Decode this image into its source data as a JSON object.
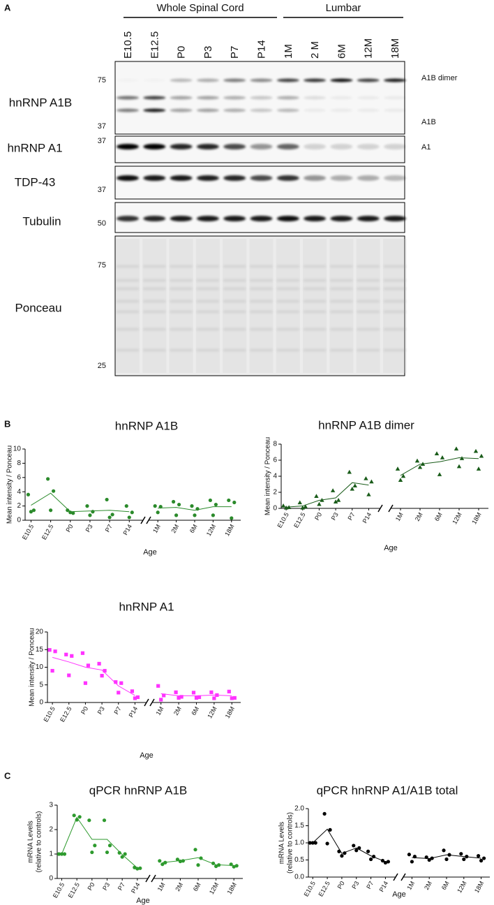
{
  "panels": [
    "A",
    "B",
    "C"
  ],
  "blot": {
    "groups": [
      "Whole Spinal Cord",
      "Lumbar"
    ],
    "lanes": [
      "E10.5",
      "E12.5",
      "P0",
      "P3",
      "P7",
      "P14",
      "1M",
      "2 M",
      "6M",
      "12M",
      "18M"
    ],
    "rows": [
      {
        "label": "hnRNP A1B",
        "markers": [
          "75",
          "37"
        ],
        "right_labels": [
          "A1B dimer",
          "A1B"
        ]
      },
      {
        "label": "hnRNP A1",
        "markers": [
          "37"
        ],
        "right_labels": [
          "A1"
        ]
      },
      {
        "label": "TDP-43",
        "markers": [
          "37"
        ],
        "right_labels": []
      },
      {
        "label": "Tubulin",
        "markers": [
          "50"
        ],
        "right_labels": []
      },
      {
        "label": "Ponceau",
        "markers": [
          "75",
          "25"
        ],
        "right_labels": []
      }
    ]
  },
  "chart_data": [
    {
      "type": "scatter",
      "title": "hnRNP A1B",
      "ylabel": "Mean intensity / Ponceau",
      "xlabel": "Age",
      "categories": [
        "E10.5",
        "E12.5",
        "P0",
        "P3",
        "P7",
        "P14",
        "1M",
        "2M",
        "6M",
        "12M",
        "18M"
      ],
      "replicates": [
        [
          3.6,
          1.4,
          1.2
        ],
        [
          5.8,
          4.1,
          1.4
        ],
        [
          1.4,
          1.0,
          1.1
        ],
        [
          2.0,
          1.2,
          0.7
        ],
        [
          2.9,
          0.8,
          0.4
        ],
        [
          2.0,
          1.1,
          0.4
        ],
        [
          2.0,
          1.9,
          1.1
        ],
        [
          2.6,
          2.2,
          0.7
        ],
        [
          2.0,
          1.6,
          0.7
        ],
        [
          2.8,
          2.2,
          0.7
        ],
        [
          2.8,
          2.5,
          0.3
        ]
      ],
      "values": [
        2.1,
        3.8,
        1.2,
        1.3,
        1.4,
        1.2,
        1.7,
        1.8,
        1.4,
        1.9,
        1.9
      ],
      "color": "#2b8a2b",
      "marker": "circle",
      "ylim": [
        0,
        10
      ],
      "yticks": [
        0,
        2,
        4,
        6,
        8,
        10
      ]
    },
    {
      "type": "scatter",
      "title": "hnRNP A1B dimer",
      "ylabel": "Mean intensity / Ponceau",
      "xlabel": "Age",
      "categories": [
        "E10.5",
        "E12.5",
        "P0",
        "P3",
        "P7",
        "P14",
        "1M",
        "2M",
        "6M",
        "12M",
        "18M"
      ],
      "replicates": [
        [
          0.3,
          0.1,
          0.05
        ],
        [
          0.7,
          0.2,
          0.05
        ],
        [
          1.5,
          1.0,
          0.5
        ],
        [
          2.2,
          1.0,
          0.8
        ],
        [
          4.5,
          2.8,
          2.4
        ],
        [
          3.7,
          3.3,
          1.7
        ],
        [
          4.9,
          4.0,
          3.5
        ],
        [
          5.9,
          5.5,
          5.1
        ],
        [
          6.8,
          6.3,
          4.2
        ],
        [
          7.4,
          6.2,
          5.2
        ],
        [
          7.1,
          6.5,
          4.9
        ]
      ],
      "values": [
        0.15,
        0.3,
        1.0,
        1.3,
        3.2,
        2.9,
        4.1,
        5.5,
        5.8,
        6.3,
        6.2
      ],
      "color": "#1a5c1a",
      "marker": "triangle",
      "ylim": [
        0,
        8
      ],
      "yticks": [
        0,
        2,
        4,
        6,
        8
      ]
    },
    {
      "type": "scatter",
      "title": "hnRNP A1",
      "ylabel": "Mean intensity / Ponceau",
      "xlabel": "Age",
      "categories": [
        "E10.5",
        "E12.5",
        "P0",
        "P3",
        "P7",
        "P14",
        "1M",
        "2M",
        "6M",
        "12M",
        "18M"
      ],
      "replicates": [
        [
          14.9,
          14.5,
          9.0
        ],
        [
          13.6,
          13.2,
          7.7
        ],
        [
          14.0,
          10.5,
          5.5
        ],
        [
          11.0,
          9.0,
          7.6
        ],
        [
          5.8,
          5.5,
          2.8
        ],
        [
          3.2,
          1.5,
          1.2
        ],
        [
          4.7,
          2.0,
          0.8
        ],
        [
          2.9,
          1.6,
          1.3
        ],
        [
          2.8,
          1.5,
          1.3
        ],
        [
          2.9,
          2.1,
          1.2
        ],
        [
          3.1,
          1.3,
          1.2
        ]
      ],
      "values": [
        12.8,
        11.5,
        10.0,
        9.2,
        4.7,
        2.0,
        2.5,
        1.9,
        1.9,
        2.1,
        1.9
      ],
      "color": "#ff33ff",
      "marker": "square",
      "ylim": [
        0,
        20
      ],
      "yticks": [
        0,
        5,
        10,
        15,
        20
      ]
    },
    {
      "type": "scatter",
      "title": "qPCR hnRNP A1B",
      "ylabel": [
        "mRNA Levels",
        "(relative to controls)"
      ],
      "xlabel": "Age",
      "categories": [
        "E10.5",
        "E12.5",
        "P0",
        "P3",
        "P7",
        "P14",
        "1M",
        "2M",
        "6M",
        "12M",
        "18M"
      ],
      "replicates": [
        [
          1,
          1,
          1
        ],
        [
          2.58,
          2.52,
          2.4
        ],
        [
          2.38,
          1.35,
          1.07
        ],
        [
          2.38,
          1.35,
          1.07
        ],
        [
          1.05,
          1.0,
          0.88
        ],
        [
          0.45,
          0.42,
          0.4
        ],
        [
          0.72,
          0.65,
          0.58
        ],
        [
          0.78,
          0.72,
          0.7
        ],
        [
          1.18,
          0.83,
          0.55
        ],
        [
          0.62,
          0.55,
          0.5
        ],
        [
          0.58,
          0.52,
          0.48
        ]
      ],
      "values": [
        1.0,
        2.5,
        1.6,
        1.6,
        0.98,
        0.43,
        0.65,
        0.73,
        0.85,
        0.56,
        0.53
      ],
      "color": "#2e9a2e",
      "marker": "circle",
      "ylim": [
        0,
        3
      ],
      "yticks": [
        0,
        1,
        2,
        3
      ]
    },
    {
      "type": "scatter",
      "title": "qPCR hnRNP A1/A1B total",
      "ylabel": [
        "mRNA Levels",
        "(relative to controls)"
      ],
      "xlabel": "Age",
      "categories": [
        "E10.5",
        "E12.5",
        "P0",
        "P3",
        "P7",
        "P14",
        "1M",
        "2M",
        "6M",
        "12M",
        "18M"
      ],
      "replicates": [
        [
          1,
          1,
          1
        ],
        [
          1.85,
          1.38,
          0.98
        ],
        [
          0.75,
          0.7,
          0.62
        ],
        [
          0.92,
          0.85,
          0.78
        ],
        [
          0.75,
          0.6,
          0.52
        ],
        [
          0.48,
          0.45,
          0.42
        ],
        [
          0.66,
          0.6,
          0.45
        ],
        [
          0.58,
          0.55,
          0.5
        ],
        [
          0.78,
          0.65,
          0.52
        ],
        [
          0.68,
          0.6,
          0.52
        ],
        [
          0.62,
          0.55,
          0.48
        ]
      ],
      "values": [
        1.0,
        1.4,
        0.69,
        0.85,
        0.62,
        0.45,
        0.57,
        0.54,
        0.65,
        0.6,
        0.55
      ],
      "color": "#000000",
      "marker": "circle",
      "ylim": [
        0,
        2
      ],
      "yticks": [
        {
          "value": 0,
          "label": "0.0"
        },
        {
          "value": 0.5,
          "label": "0.5"
        },
        {
          "value": 1,
          "label": "1.0"
        },
        {
          "value": 1.5,
          "label": "1.5"
        },
        {
          "value": 2,
          "label": "2.0"
        }
      ]
    }
  ]
}
